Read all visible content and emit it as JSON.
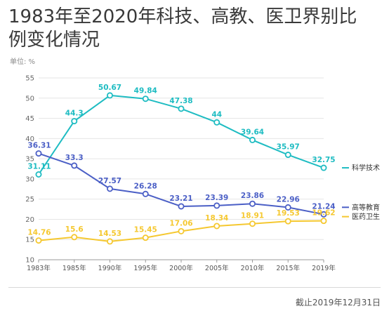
{
  "header": {
    "title": "1983年至2020年科技、高教、医卫界别比例变化情况",
    "unit_label": "单位: %"
  },
  "footer": {
    "note": "截止2019年12月31日"
  },
  "chart_data": {
    "type": "line",
    "title": "1983年至2020年科技、高教、医卫界别比例变化情况",
    "ylabel": "单位: %",
    "xlabel": "",
    "categories": [
      "1983年",
      "1985年",
      "1990年",
      "1995年",
      "2000年",
      "2005年",
      "2010年",
      "2015年",
      "2019年"
    ],
    "ylim": [
      10,
      55
    ],
    "yticks": [
      10,
      15,
      20,
      25,
      30,
      35,
      40,
      45,
      50,
      55
    ],
    "grid": true,
    "legend_placement": "right, at line ends",
    "series": [
      {
        "name": "科学技术",
        "color": "#1ebcc2",
        "values": [
          31.11,
          44.3,
          50.67,
          49.84,
          47.38,
          44,
          39.64,
          35.97,
          32.75
        ],
        "labels": [
          "31.11",
          "44.3",
          "50.67",
          "49.84",
          "47.38",
          "44",
          "39.64",
          "35.97",
          "32.75"
        ]
      },
      {
        "name": "高等教育",
        "color": "#4b5fc6",
        "values": [
          36.31,
          33.3,
          27.57,
          26.28,
          23.21,
          23.39,
          23.86,
          22.96,
          21.24
        ],
        "labels": [
          "36.31",
          "33.3",
          "27.57",
          "26.28",
          "23.21",
          "23.39",
          "23.86",
          "22.96",
          "21.24"
        ]
      },
      {
        "name": "医药卫生",
        "color": "#f5c830",
        "values": [
          14.76,
          15.6,
          14.53,
          15.45,
          17.06,
          18.34,
          18.91,
          19.53,
          19.62
        ],
        "labels": [
          "14.76",
          "15.6",
          "14.53",
          "15.45",
          "17.06",
          "18.34",
          "18.91",
          "19.53",
          "19.62"
        ]
      }
    ]
  }
}
